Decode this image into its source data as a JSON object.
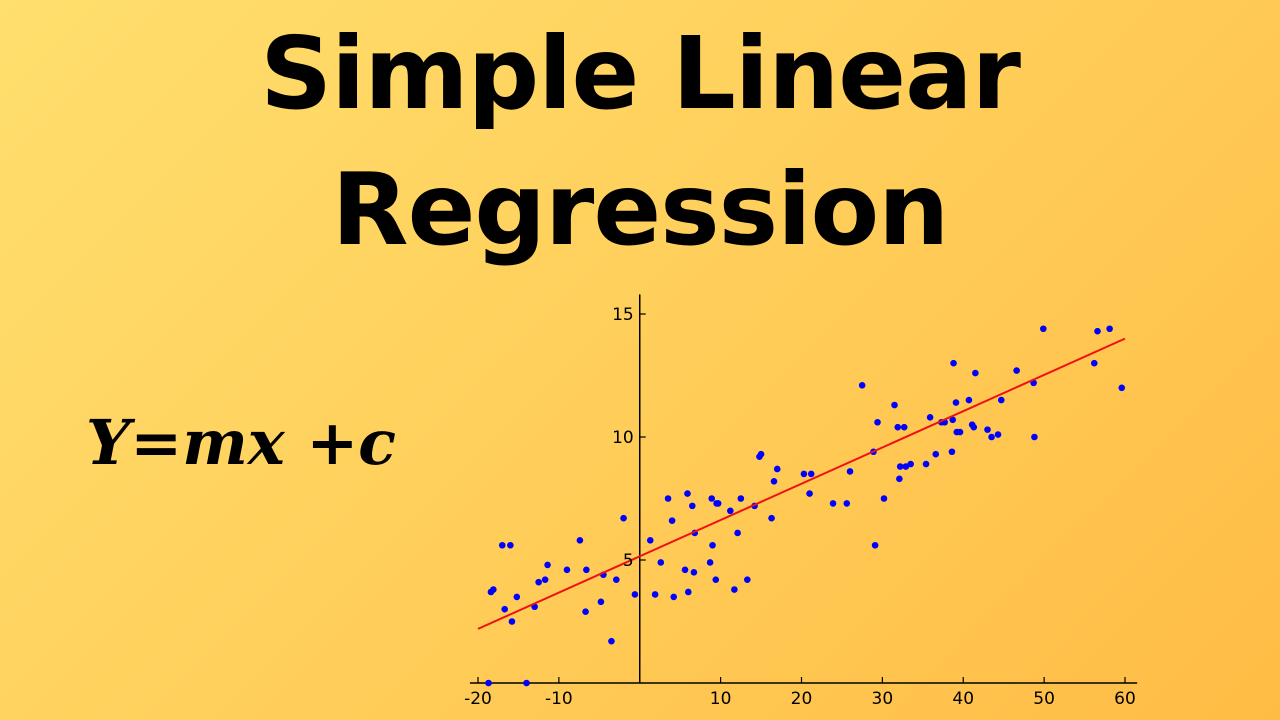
{
  "title": {
    "line1": "Simple Linear",
    "line2": "Regression"
  },
  "formula": "Y=mx +c",
  "colors": {
    "background_start": "#FFDF6E",
    "background_end": "#FFBC45",
    "text": "#000000",
    "points": "#0000FF",
    "regression_line": "#EE1111",
    "axes": "#000000"
  },
  "chart_data": {
    "type": "scatter",
    "title": "",
    "xlabel": "",
    "ylabel": "",
    "xlim": [
      -21,
      61.5
    ],
    "ylim": [
      0,
      15.8
    ],
    "grid": false,
    "x_ticks": [
      {
        "value": -20,
        "label": "-20"
      },
      {
        "value": -10,
        "label": "-10"
      },
      {
        "value": 10,
        "label": "10"
      },
      {
        "value": 20,
        "label": "20"
      },
      {
        "value": 30,
        "label": "30"
      },
      {
        "value": 40,
        "label": "40"
      },
      {
        "value": 50,
        "label": "50"
      },
      {
        "value": 60,
        "label": "60"
      }
    ],
    "y_ticks": [
      {
        "value": 5,
        "label": "5"
      },
      {
        "value": 10,
        "label": "10"
      },
      {
        "value": 15,
        "label": "15"
      }
    ],
    "series": [
      {
        "kind": "points",
        "x": [
          -18.7,
          -18.4,
          -18.1,
          -17,
          -16.7,
          -16,
          -15.8,
          -15.2,
          -14,
          -13,
          -12.5,
          -11.7,
          -11.4,
          -9,
          -7.4,
          -6.7,
          -6.6,
          -4.8,
          -4.5,
          -3.5,
          -2.9,
          -2,
          -0.6,
          1.3,
          1.9,
          2.6,
          3.5,
          4,
          4.2,
          5.6,
          5.9,
          6,
          6.5,
          6.7,
          6.8,
          8.7,
          8.9,
          9,
          9.4,
          9.5,
          9.7,
          11.2,
          11.7,
          12.1,
          12.5,
          13.3,
          14.2,
          14.8,
          15,
          16.3,
          16.6,
          17,
          20.3,
          21,
          21.2,
          23.9,
          25.6,
          26,
          27.5,
          28.9,
          29.1,
          29.4,
          30.2,
          31.5,
          31.9,
          32.1,
          32.2,
          32.7,
          32.9,
          33.5,
          35.4,
          35.9,
          36.6,
          37.3,
          37.7,
          38.6,
          38.7,
          38.8,
          39.1,
          39.2,
          39.6,
          40.7,
          41.1,
          41.3,
          41.5,
          43,
          43.5,
          44.3,
          44.7,
          46.6,
          48.7,
          48.8,
          49.9,
          56.2,
          56.6,
          58.1,
          59.6
        ],
        "y": [
          0,
          3.7,
          3.8,
          5.6,
          3,
          5.6,
          2.5,
          3.5,
          0,
          3.1,
          4.1,
          4.2,
          4.8,
          4.6,
          5.8,
          2.9,
          4.6,
          3.3,
          4.4,
          1.7,
          4.2,
          6.7,
          3.6,
          5.8,
          3.6,
          4.9,
          7.5,
          6.6,
          3.5,
          4.6,
          7.7,
          3.7,
          7.2,
          4.5,
          6.1,
          4.9,
          7.5,
          5.6,
          4.2,
          7.3,
          7.3,
          7,
          3.8,
          6.1,
          7.5,
          4.2,
          7.2,
          9.2,
          9.3,
          6.7,
          8.2,
          8.7,
          8.5,
          7.7,
          8.5,
          7.3,
          7.3,
          8.6,
          12.1,
          9.4,
          5.6,
          10.6,
          7.5,
          11.3,
          10.4,
          8.3,
          8.8,
          10.4,
          8.8,
          8.9,
          8.9,
          10.8,
          9.3,
          10.6,
          10.6,
          9.4,
          10.7,
          13,
          11.4,
          10.2,
          10.2,
          11.5,
          10.5,
          10.4,
          12.6,
          10.3,
          10,
          10.1,
          11.5,
          12.7,
          12.2,
          10,
          14.4,
          13,
          14.3,
          14.4,
          12
        ]
      },
      {
        "kind": "regression_line",
        "x": [
          -20,
          60
        ],
        "y": [
          2.2,
          14.0
        ]
      }
    ]
  }
}
